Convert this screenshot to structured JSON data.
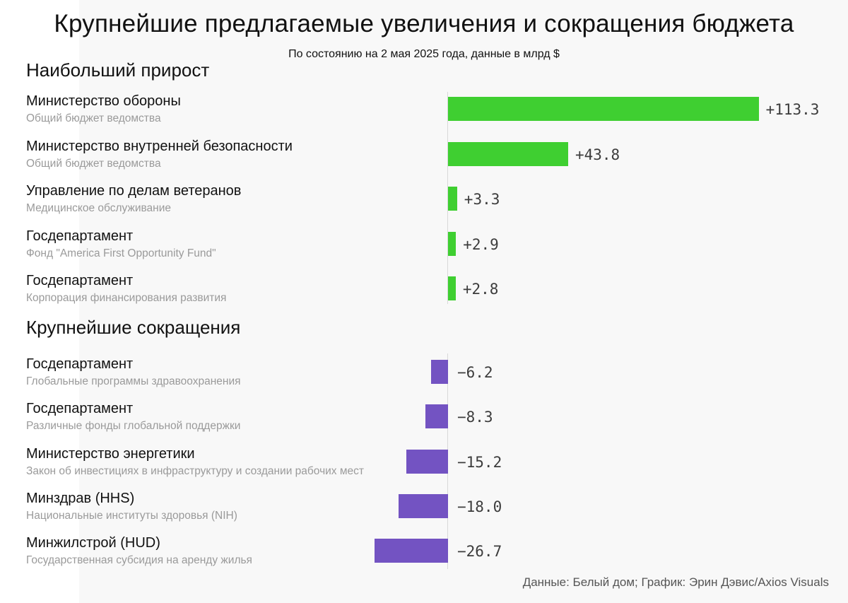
{
  "title": "Крупнейшие предлагаемые увеличения и сокращения бюджета",
  "subtitle": "По состоянию на 2 мая 2025 года, данные в млрд $",
  "source": "Данные: Белый дом; График: Эрин Дэвис/Axios Visuals",
  "colors": {
    "increase": "#3fcf31",
    "decrease": "#7353c2",
    "subtext": "#9a9a9a"
  },
  "chart_data": {
    "type": "bar",
    "orientation": "horizontal",
    "unit": "billion USD",
    "groups": [
      {
        "title": "Наибольший прирост",
        "items": [
          {
            "label": "Министерство обороны",
            "sublabel": "Общий бюджет ведомства",
            "value": 113.3,
            "display": "+113.3"
          },
          {
            "label": "Министерство внутренней безопасности",
            "sublabel": "Общий бюджет ведомства",
            "value": 43.8,
            "display": "+43.8"
          },
          {
            "label": "Управление по делам ветеранов",
            "sublabel": "Медицинское обслуживание",
            "value": 3.3,
            "display": "+3.3"
          },
          {
            "label": "Госдепартамент",
            "sublabel": "Фонд \"America First Opportunity Fund\"",
            "value": 2.9,
            "display": "+2.9"
          },
          {
            "label": "Госдепартамент",
            "sublabel": "Корпорация финансирования развития",
            "value": 2.8,
            "display": "+2.8"
          }
        ]
      },
      {
        "title": "Крупнейшие сокращения",
        "items": [
          {
            "label": "Госдепартамент",
            "sublabel": "Глобальные программы здравоохранения",
            "value": -6.2,
            "display": "−6.2"
          },
          {
            "label": "Госдепартамент",
            "sublabel": "Различные фонды глобальной поддержки",
            "value": -8.3,
            "display": "−8.3"
          },
          {
            "label": "Министерство энергетики",
            "sublabel": "Закон об инвестициях в инфраструктуру и создании рабочих мест",
            "value": -15.2,
            "display": "−15.2"
          },
          {
            "label": "Минздрав (HHS)",
            "sublabel": "Национальные институты здоровья (NIH)",
            "value": -18.0,
            "display": "−18.0"
          },
          {
            "label": "Минжилстрой (HUD)",
            "sublabel": "Государственная субсидия на аренду жилья",
            "value": -26.7,
            "display": "−26.7"
          }
        ]
      }
    ]
  }
}
